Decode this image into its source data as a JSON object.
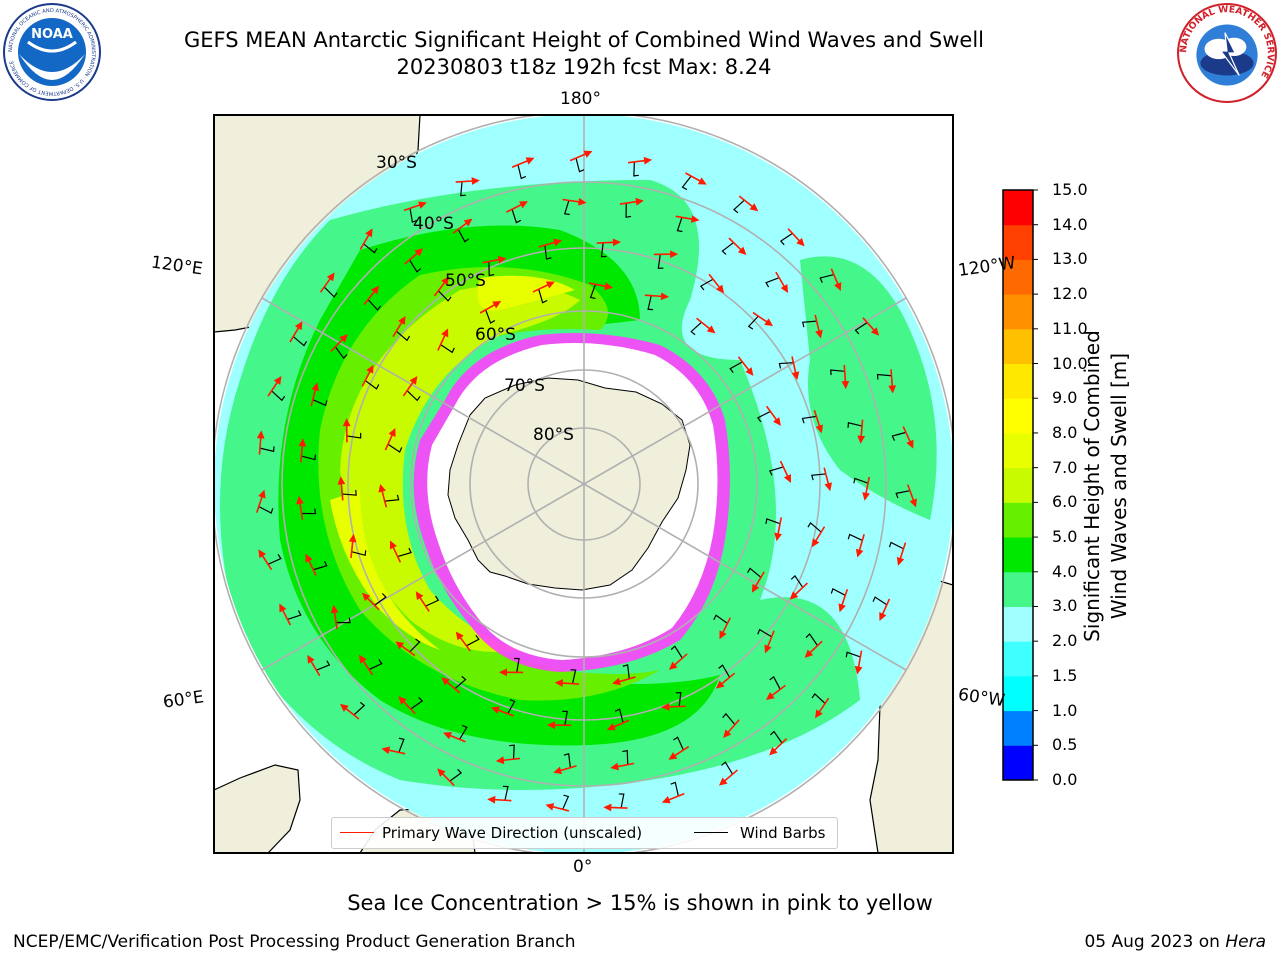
{
  "header": {
    "title_line1": "GEFS MEAN Antarctic Significant Height of Combined Wind Waves and Swell",
    "title_line2": "20230803 t18z 192h fcst   Max: 8.24"
  },
  "logos": {
    "left": {
      "name": "NOAA",
      "text": "NOAA",
      "ring_text": "NATIONAL OCEANIC AND ATMOSPHERIC ADMINISTRATION · U.S. DEPARTMENT OF COMMERCE"
    },
    "right": {
      "name": "National Weather Service",
      "ring_text": "NATIONAL WEATHER SERVICE"
    }
  },
  "map": {
    "projection": "south-polar-stereographic",
    "lon_labels": [
      "180°",
      "120°E",
      "120°W",
      "60°E",
      "60°W",
      "0°"
    ],
    "lat_labels": [
      "30°S",
      "40°S",
      "50°S",
      "60°S",
      "70°S",
      "80°S"
    ],
    "colors": {
      "land": "#efefdb",
      "ice": "#ffffff",
      "grid": "#b0b0b0",
      "arrow": "#ff1a00",
      "barb": "#000000"
    }
  },
  "legend": {
    "primary_wave": "Primary Wave Direction (unscaled)",
    "wind_barbs": "Wind Barbs"
  },
  "colorbar": {
    "title_line1": "Significant Height of Combined",
    "title_line2": "Wind Waves and Swell [m]",
    "ticks": [
      "0.0",
      "0.5",
      "1.0",
      "1.5",
      "2.0",
      "3.0",
      "4.0",
      "5.0",
      "6.0",
      "7.0",
      "8.0",
      "9.0",
      "10.0",
      "11.0",
      "12.0",
      "13.0",
      "14.0",
      "15.0"
    ],
    "colors": [
      "#0000ff",
      "#0080ff",
      "#00ffff",
      "#40ffff",
      "#a0ffff",
      "#45f78a",
      "#00e800",
      "#66f000",
      "#c8fa00",
      "#e8ff00",
      "#ffff00",
      "#ffe800",
      "#ffc000",
      "#ff9000",
      "#ff6a00",
      "#ff4000",
      "#ff0000"
    ]
  },
  "caption": "Sea Ice Concentration > 15% is shown in pink to yellow",
  "footer": {
    "left": "NCEP/EMC/Verification Post Processing Product Generation Branch",
    "right_date": "05 Aug 2023 on",
    "right_machine": "Hera"
  }
}
